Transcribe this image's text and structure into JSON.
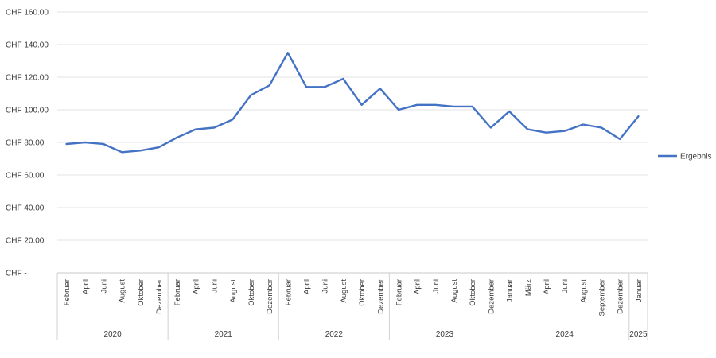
{
  "chart_data": {
    "type": "line",
    "title": "",
    "xlabel": "",
    "ylabel": "",
    "ylim": [
      0,
      160
    ],
    "y_ticks": [
      {
        "value": 0,
        "label": "CHF -"
      },
      {
        "value": 20,
        "label": "CHF 20.00"
      },
      {
        "value": 40,
        "label": "CHF 40.00"
      },
      {
        "value": 60,
        "label": "CHF 60.00"
      },
      {
        "value": 80,
        "label": "CHF 80.00"
      },
      {
        "value": 100,
        "label": "CHF 100.00"
      },
      {
        "value": 120,
        "label": "CHF 120.00"
      },
      {
        "value": 140,
        "label": "CHF 140.00"
      },
      {
        "value": 160,
        "label": "CHF 160.00"
      }
    ],
    "grid": true,
    "legend": {
      "position": "right",
      "entries": [
        "Ergebnis"
      ]
    },
    "categories": [
      "Februar",
      "April",
      "Juni",
      "August",
      "Oktober",
      "Dezember",
      "Februar",
      "April",
      "Juni",
      "August",
      "Oktober",
      "Dezember",
      "Februar",
      "April",
      "Juni",
      "August",
      "Oktober",
      "Dezember",
      "Februar",
      "April",
      "Juni",
      "August",
      "Oktober",
      "Dezember",
      "Januar",
      "März",
      "April",
      "Juni",
      "August",
      "September",
      "Dezember",
      "Januar"
    ],
    "year_groups": [
      {
        "year": "2020",
        "count": 6
      },
      {
        "year": "2021",
        "count": 6
      },
      {
        "year": "2022",
        "count": 6
      },
      {
        "year": "2023",
        "count": 6
      },
      {
        "year": "2024",
        "count": 7
      },
      {
        "year": "2025",
        "count": 1
      }
    ],
    "series": [
      {
        "name": "Ergebnis",
        "color": "#4472C4",
        "values": [
          79,
          80,
          79,
          74,
          75,
          77,
          83,
          88,
          89,
          94,
          109,
          115,
          135,
          114,
          114,
          119,
          103,
          113,
          100,
          103,
          103,
          102,
          102,
          89,
          99,
          88,
          86,
          87,
          91,
          89,
          82,
          96
        ]
      }
    ]
  }
}
